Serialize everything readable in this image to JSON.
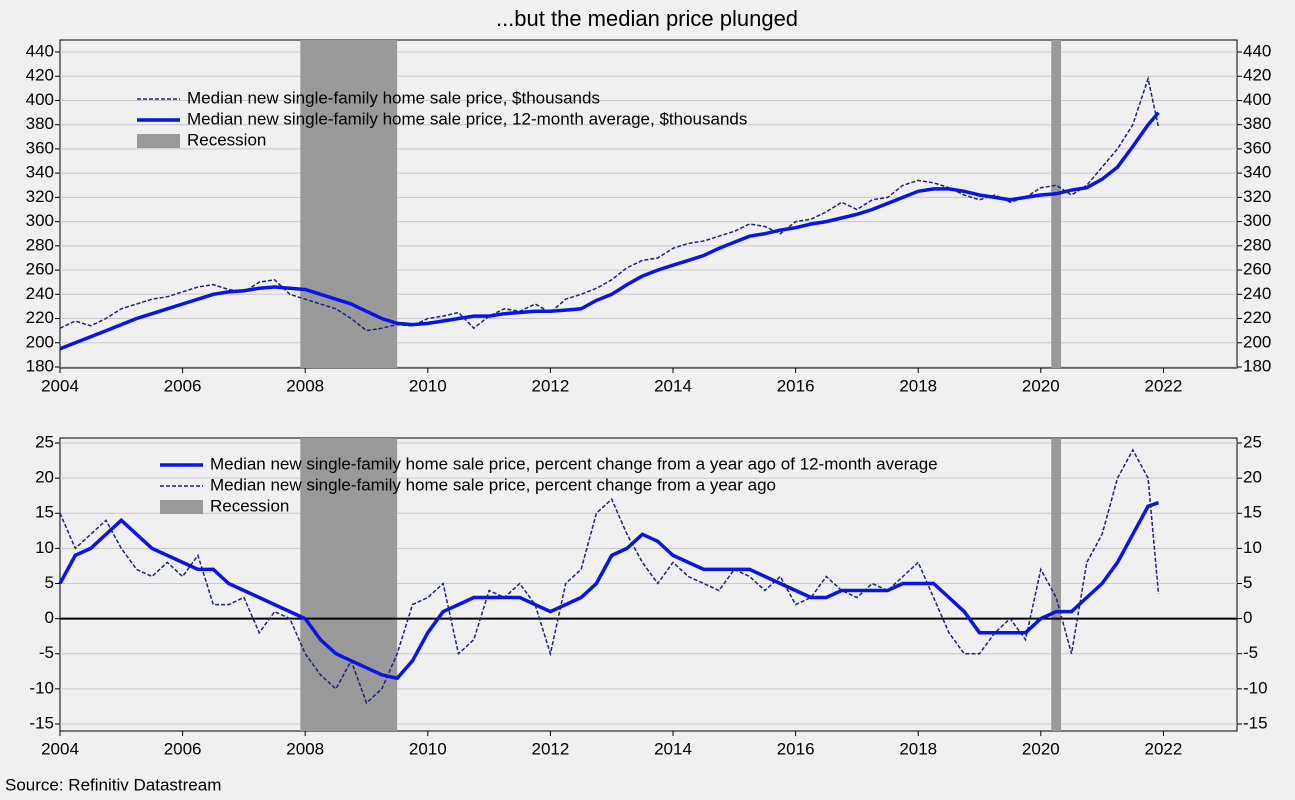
{
  "source": "Source: Refinitiv Datastream",
  "chart_data": [
    {
      "type": "line",
      "title": "...but the median price plunged",
      "x": [
        2004,
        2004.25,
        2004.5,
        2004.75,
        2005,
        2005.25,
        2005.5,
        2005.75,
        2006,
        2006.25,
        2006.5,
        2006.75,
        2007,
        2007.25,
        2007.5,
        2007.75,
        2008,
        2008.25,
        2008.5,
        2008.75,
        2009,
        2009.25,
        2009.5,
        2009.75,
        2010,
        2010.25,
        2010.5,
        2010.75,
        2011,
        2011.25,
        2011.5,
        2011.75,
        2012,
        2012.25,
        2012.5,
        2012.75,
        2013,
        2013.25,
        2013.5,
        2013.75,
        2014,
        2014.25,
        2014.5,
        2014.75,
        2015,
        2015.25,
        2015.5,
        2015.75,
        2016,
        2016.25,
        2016.5,
        2016.75,
        2017,
        2017.25,
        2017.5,
        2017.75,
        2018,
        2018.25,
        2018.5,
        2018.75,
        2019,
        2019.25,
        2019.5,
        2019.75,
        2020,
        2020.25,
        2020.5,
        2020.75,
        2021,
        2021.25,
        2021.5,
        2021.75,
        2021.92
      ],
      "series": [
        {
          "name": "Median new single-family home sale price, $thousands",
          "color": "#1a237e",
          "dash": true,
          "values": [
            212,
            218,
            214,
            220,
            228,
            232,
            236,
            238,
            242,
            246,
            248,
            244,
            242,
            250,
            252,
            240,
            236,
            232,
            228,
            220,
            210,
            212,
            215,
            214,
            220,
            222,
            225,
            212,
            222,
            228,
            226,
            232,
            225,
            236,
            240,
            245,
            252,
            262,
            268,
            270,
            278,
            282,
            284,
            288,
            292,
            298,
            296,
            290,
            300,
            302,
            308,
            316,
            310,
            318,
            320,
            330,
            334,
            332,
            328,
            322,
            318,
            322,
            316,
            320,
            328,
            330,
            322,
            330,
            345,
            360,
            380,
            418,
            378
          ]
        },
        {
          "name": "Median new single-family home sale price, 12-month average, $thousands",
          "color": "#0a14e6",
          "dash": false,
          "values": [
            195,
            200,
            205,
            210,
            215,
            220,
            224,
            228,
            232,
            236,
            240,
            242,
            243,
            245,
            246,
            245,
            244,
            240,
            236,
            232,
            226,
            220,
            216,
            215,
            216,
            218,
            220,
            222,
            222,
            224,
            225,
            226,
            226,
            227,
            228,
            235,
            240,
            248,
            255,
            260,
            264,
            268,
            272,
            278,
            283,
            288,
            290,
            293,
            295,
            298,
            300,
            303,
            306,
            310,
            315,
            320,
            325,
            327,
            327,
            325,
            322,
            320,
            318,
            320,
            322,
            323,
            326,
            328,
            335,
            345,
            362,
            380,
            390
          ]
        }
      ],
      "legend_order": [
        0,
        1
      ],
      "recession_label": "Recession",
      "recessions": [
        [
          2007.92,
          2009.5
        ],
        [
          2020.17,
          2020.33
        ]
      ],
      "recession_color": "#999999",
      "xlim": [
        2004,
        2023.2
      ],
      "xticks": [
        2004,
        2006,
        2008,
        2010,
        2012,
        2014,
        2016,
        2018,
        2020,
        2022
      ],
      "ylim": [
        180,
        440
      ],
      "yticks": [
        180,
        200,
        220,
        240,
        260,
        280,
        300,
        320,
        340,
        360,
        380,
        400,
        420,
        440
      ],
      "grid": true
    },
    {
      "type": "line",
      "x": [
        2004,
        2004.25,
        2004.5,
        2004.75,
        2005,
        2005.25,
        2005.5,
        2005.75,
        2006,
        2006.25,
        2006.5,
        2006.75,
        2007,
        2007.25,
        2007.5,
        2007.75,
        2008,
        2008.25,
        2008.5,
        2008.75,
        2009,
        2009.25,
        2009.5,
        2009.75,
        2010,
        2010.25,
        2010.5,
        2010.75,
        2011,
        2011.25,
        2011.5,
        2011.75,
        2012,
        2012.25,
        2012.5,
        2012.75,
        2013,
        2013.25,
        2013.5,
        2013.75,
        2014,
        2014.25,
        2014.5,
        2014.75,
        2015,
        2015.25,
        2015.5,
        2015.75,
        2016,
        2016.25,
        2016.5,
        2016.75,
        2017,
        2017.25,
        2017.5,
        2017.75,
        2018,
        2018.25,
        2018.5,
        2018.75,
        2019,
        2019.25,
        2019.5,
        2019.75,
        2020,
        2020.25,
        2020.5,
        2020.75,
        2021,
        2021.25,
        2021.5,
        2021.75,
        2021.92
      ],
      "series": [
        {
          "name": "Median new single-family home sale price, percent change from a year ago of 12-month average",
          "color": "#0a14e6",
          "dash": false,
          "values": [
            5,
            9,
            10,
            12,
            14,
            12,
            10,
            9,
            8,
            7,
            7,
            5,
            4,
            3,
            2,
            1,
            0,
            -3,
            -5,
            -6,
            -7,
            -8,
            -8.5,
            -6,
            -2,
            1,
            2,
            3,
            3,
            3,
            3,
            2,
            1,
            2,
            3,
            5,
            9,
            10,
            12,
            11,
            9,
            8,
            7,
            7,
            7,
            7,
            6,
            5,
            4,
            3,
            3,
            4,
            4,
            4,
            4,
            5,
            5,
            5,
            3,
            1,
            -2,
            -2,
            -2,
            -2,
            0,
            1,
            1,
            3,
            5,
            8,
            12,
            16,
            16.5
          ]
        },
        {
          "name": "Median new single-family home sale price, percent change from a year ago",
          "color": "#1a237e",
          "dash": true,
          "values": [
            15,
            10,
            12,
            14,
            10,
            7,
            6,
            8,
            6,
            9,
            2,
            2,
            3,
            -2,
            1,
            0,
            -5,
            -8,
            -10,
            -6,
            -12,
            -10,
            -5,
            2,
            3,
            5,
            -5,
            -3,
            4,
            3,
            5,
            2,
            -5,
            5,
            7,
            15,
            17,
            12,
            8,
            5,
            8,
            6,
            5,
            4,
            7,
            6,
            4,
            6,
            2,
            3,
            6,
            4,
            3,
            5,
            4,
            6,
            8,
            3,
            -2,
            -5,
            -5,
            -2,
            0,
            -3,
            7,
            3,
            -5,
            8,
            12,
            20,
            24,
            20,
            3.5
          ]
        }
      ],
      "legend_order": [
        0,
        1
      ],
      "recession_label": "Recession",
      "recessions": [
        [
          2007.92,
          2009.5
        ],
        [
          2020.17,
          2020.33
        ]
      ],
      "recession_color": "#999999",
      "xlim": [
        2004,
        2023.2
      ],
      "xticks": [
        2004,
        2006,
        2008,
        2010,
        2012,
        2014,
        2016,
        2018,
        2020,
        2022
      ],
      "ylim": [
        -16,
        25
      ],
      "yticks": [
        -15,
        -10,
        -5,
        0,
        5,
        10,
        15,
        20,
        25
      ],
      "grid": true,
      "zero_line": true
    }
  ]
}
